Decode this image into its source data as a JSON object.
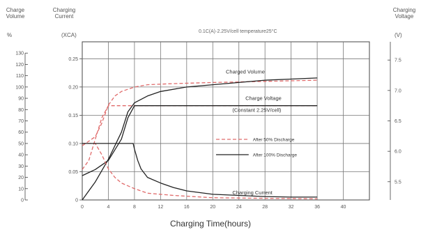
{
  "chart_data": {
    "type": "line",
    "condition": "0.1C(A)·2.25V/cell  temperature25°C",
    "xlabel": "Charging Time(hours)",
    "x_ticks": [
      0,
      4,
      8,
      12,
      16,
      20,
      24,
      28,
      32,
      36,
      40
    ],
    "xlim": [
      0,
      44
    ],
    "axes": {
      "charge_volume": {
        "title_line1": "Charge",
        "title_line2": "Volume",
        "unit": "%",
        "ticks": [
          0,
          10,
          20,
          30,
          40,
          50,
          60,
          70,
          80,
          90,
          100,
          110,
          120,
          130
        ],
        "ylim": [
          0,
          140
        ]
      },
      "charging_current": {
        "title_line1": "Charging",
        "title_line2": "Current",
        "unit": "(XCA)",
        "ticks": [
          0,
          0.05,
          0.1,
          0.15,
          0.2,
          0.25
        ],
        "tick_labels": [
          "0",
          "0.05",
          "0.10",
          "0.15",
          "0.20",
          "0.25"
        ],
        "ylim": [
          0,
          0.28
        ]
      },
      "charging_voltage": {
        "title_line1": "Charging",
        "title_line2": "Voltage",
        "unit": "(V)",
        "ticks": [
          5.5,
          6.0,
          6.5,
          7.0,
          7.5
        ],
        "tick_labels": [
          "5.5",
          "6.0",
          "6.5",
          "7.0",
          "7.5"
        ],
        "ylim": [
          5.2,
          7.8
        ]
      }
    },
    "annotations": {
      "charged_volume": "Charged Volume",
      "charge_voltage_1": "Charge Voltage",
      "charge_voltage_2": "(Constant 2.25V/cell)",
      "charging_current": "Charging Current"
    },
    "legend": {
      "placement": "center-right",
      "entries": [
        {
          "label": "After 50% Discharge",
          "color": "#e06a6a",
          "dash": true
        },
        {
          "label": "After 100% Discharge",
          "color": "#222222",
          "dash": false
        }
      ]
    },
    "series": [
      {
        "quantity": "charge_volume",
        "discharge": "50%",
        "dashed": true,
        "color": "#e06a6a",
        "x": [
          0,
          2,
          3,
          4,
          5,
          6,
          8,
          10,
          14,
          20,
          28,
          36
        ],
        "y": [
          48,
          56,
          68,
          84,
          92,
          96,
          100,
          102,
          103,
          104,
          105,
          106
        ]
      },
      {
        "quantity": "charge_volume",
        "discharge": "100%",
        "dashed": false,
        "color": "#222222",
        "x": [
          0,
          2,
          4,
          6,
          7,
          8,
          10,
          12,
          16,
          20,
          24,
          28,
          32,
          36
        ],
        "y": [
          0,
          16,
          36,
          60,
          78,
          86,
          92,
          96,
          100,
          102,
          104,
          106,
          107,
          108
        ]
      },
      {
        "quantity": "charging_voltage",
        "discharge": "50%",
        "dashed": true,
        "color": "#e06a6a",
        "x": [
          0,
          1,
          2,
          3,
          4,
          5,
          6,
          10,
          20,
          30,
          36
        ],
        "y": [
          5.7,
          5.85,
          6.2,
          6.55,
          6.75,
          6.75,
          6.75,
          6.75,
          6.75,
          6.75,
          6.75
        ]
      },
      {
        "quantity": "charging_voltage",
        "discharge": "100%",
        "dashed": false,
        "color": "#222222",
        "x": [
          0,
          2,
          4,
          6,
          7,
          8,
          10,
          20,
          30,
          36
        ],
        "y": [
          5.6,
          5.7,
          5.85,
          6.2,
          6.55,
          6.75,
          6.75,
          6.75,
          6.75,
          6.75
        ]
      },
      {
        "quantity": "charging_current",
        "discharge": "50%",
        "dashed": true,
        "color": "#e06a6a",
        "x": [
          0,
          1,
          2,
          3,
          4,
          5,
          6,
          8,
          10,
          14,
          20,
          28,
          36
        ],
        "y": [
          0.1,
          0.1,
          0.1,
          0.08,
          0.055,
          0.04,
          0.03,
          0.02,
          0.012,
          0.008,
          0.004,
          0.003,
          0.002
        ]
      },
      {
        "quantity": "charging_current",
        "discharge": "100%",
        "dashed": false,
        "color": "#222222",
        "x": [
          0,
          4,
          7.8,
          8,
          8.5,
          9,
          10,
          12,
          14,
          16,
          20,
          24,
          28,
          32,
          36
        ],
        "y": [
          0.1,
          0.1,
          0.1,
          0.09,
          0.07,
          0.055,
          0.04,
          0.03,
          0.022,
          0.016,
          0.01,
          0.008,
          0.006,
          0.005,
          0.005
        ]
      }
    ]
  }
}
